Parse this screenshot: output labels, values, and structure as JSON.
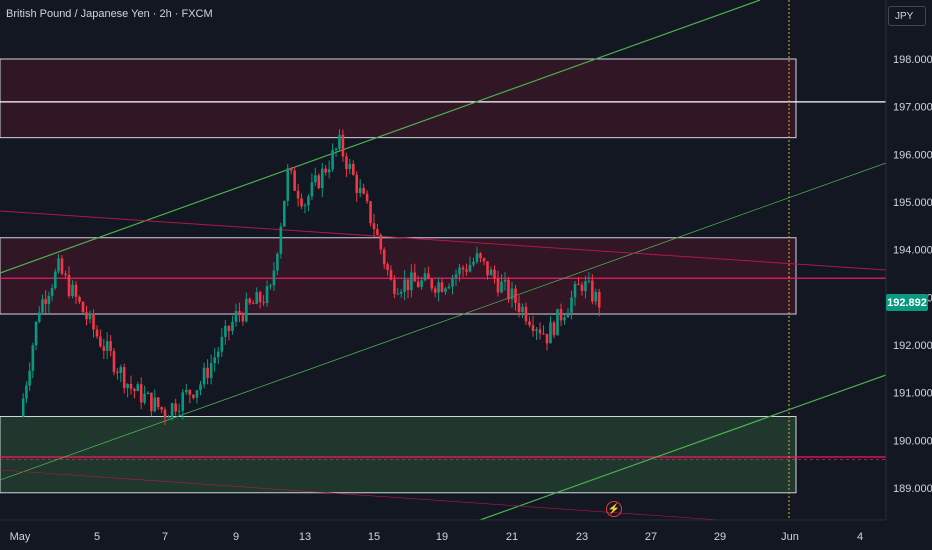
{
  "header": {
    "title": "British Pound / Japanese Yen · 2h · FXCM"
  },
  "currency_button": "JPY",
  "last_price_label": "192.892",
  "event_icon": "lightning-bolt-icon",
  "colors": {
    "background": "#131722",
    "up": "#089981",
    "down": "#f23645",
    "channel": "#4caf50",
    "resistance": "#b2174b"
  },
  "chart_data": {
    "type": "candlestick",
    "title": "British Pound / Japanese Yen · 2h · FXCM",
    "ylim": [
      188.4,
      199.4
    ],
    "y_ticks": [
      "198.000",
      "197.000",
      "196.000",
      "195.000",
      "194.000",
      "193.000",
      "192.000",
      "191.000",
      "190.000",
      "189.000"
    ],
    "x_ticks": [
      "May",
      "5",
      "7",
      "9",
      "13",
      "15",
      "19",
      "21",
      "23",
      "27",
      "29",
      "Jun",
      "4"
    ],
    "last_price": 192.892,
    "path_points": [
      {
        "date": "May 1",
        "price": 190.5
      },
      {
        "date": "May 2",
        "price": 192.8
      },
      {
        "date": "May 3",
        "price": 193.6
      },
      {
        "date": "May 5",
        "price": 192.2
      },
      {
        "date": "May 6",
        "price": 191.1
      },
      {
        "date": "May 7",
        "price": 190.6
      },
      {
        "date": "May 8",
        "price": 191.2
      },
      {
        "date": "May 9",
        "price": 192.6
      },
      {
        "date": "May 11",
        "price": 193.1
      },
      {
        "date": "May 12",
        "price": 195.6
      },
      {
        "date": "May 13",
        "price": 195.0
      },
      {
        "date": "May 14",
        "price": 196.2
      },
      {
        "date": "May 15",
        "price": 194.5
      },
      {
        "date": "May 16",
        "price": 193.3
      },
      {
        "date": "May 19",
        "price": 193.3
      },
      {
        "date": "May 20",
        "price": 193.8
      },
      {
        "date": "May 21",
        "price": 193.0
      },
      {
        "date": "May 22",
        "price": 192.2
      },
      {
        "date": "May 23",
        "price": 193.3
      },
      {
        "date": "May 24",
        "price": 192.9
      }
    ],
    "zones": [
      {
        "type": "supply",
        "top": 198.0,
        "bottom": 196.35
      },
      {
        "type": "supply",
        "top": 194.25,
        "bottom": 192.65
      },
      {
        "type": "demand",
        "top": 190.5,
        "bottom": 188.9
      }
    ],
    "horizontal_lines": [
      197.1,
      193.4,
      189.65
    ],
    "grid": false
  }
}
